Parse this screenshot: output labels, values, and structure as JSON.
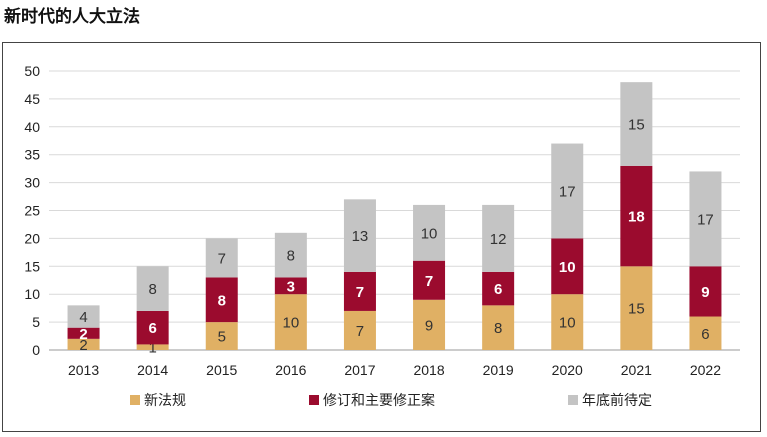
{
  "title": "新时代的人大立法",
  "chart_data": {
    "type": "bar",
    "stacked": true,
    "categories": [
      "2013",
      "2014",
      "2015",
      "2016",
      "2017",
      "2018",
      "2019",
      "2020",
      "2021",
      "2022"
    ],
    "series": [
      {
        "name": "新法规",
        "color": "#e0b064",
        "label_color": "#333333",
        "values": [
          2,
          1,
          5,
          10,
          7,
          9,
          8,
          10,
          15,
          6
        ]
      },
      {
        "name": "修订和主要修正案",
        "color": "#9b0b2e",
        "label_color": "#ffffff",
        "values": [
          2,
          6,
          8,
          3,
          7,
          7,
          6,
          10,
          18,
          9
        ]
      },
      {
        "name": "年底前待定",
        "color": "#c4c4c4",
        "label_color": "#333333",
        "values": [
          4,
          8,
          7,
          8,
          13,
          10,
          12,
          17,
          15,
          17
        ]
      }
    ],
    "ylim": [
      0,
      50
    ],
    "yticks": [
      0,
      5,
      10,
      15,
      20,
      25,
      30,
      35,
      40,
      45,
      50
    ],
    "grid": true,
    "legend_position": "bottom"
  }
}
